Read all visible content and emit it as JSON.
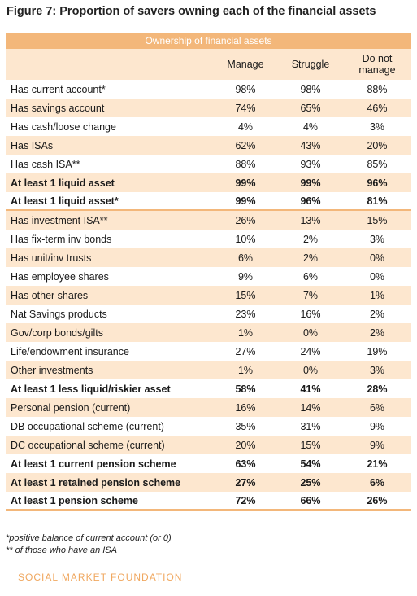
{
  "title": "Figure 7: Proportion of savers owning each of the financial assets",
  "table": {
    "banner": "Ownership of financial assets",
    "columns": [
      "Manage",
      "Struggle",
      "Do not manage"
    ],
    "rows": [
      {
        "label": "Has current account*",
        "manage": "98%",
        "struggle": "98%",
        "donot": "88%"
      },
      {
        "label": "Has savings account",
        "manage": "74%",
        "struggle": "65%",
        "donot": "46%"
      },
      {
        "label": "Has cash/loose change",
        "manage": "4%",
        "struggle": "4%",
        "donot": "3%"
      },
      {
        "label": "Has ISAs",
        "manage": "62%",
        "struggle": "43%",
        "donot": "20%"
      },
      {
        "label": "Has cash ISA**",
        "manage": "88%",
        "struggle": "93%",
        "donot": "85%"
      },
      {
        "label": "At least 1 liquid asset",
        "manage": "99%",
        "struggle": "99%",
        "donot": "96%"
      },
      {
        "label": "At least 1 liquid asset*",
        "manage": "99%",
        "struggle": "96%",
        "donot": "81%"
      },
      {
        "label": "Has investment ISA**",
        "manage": "26%",
        "struggle": "13%",
        "donot": "15%"
      },
      {
        "label": "Has fix-term inv bonds",
        "manage": "10%",
        "struggle": "2%",
        "donot": "3%"
      },
      {
        "label": "Has unit/inv trusts",
        "manage": "6%",
        "struggle": "2%",
        "donot": "0%"
      },
      {
        "label": "Has employee shares",
        "manage": "9%",
        "struggle": "6%",
        "donot": "0%"
      },
      {
        "label": "Has other shares",
        "manage": "15%",
        "struggle": "7%",
        "donot": "1%"
      },
      {
        "label": "Nat Savings products",
        "manage": "23%",
        "struggle": "16%",
        "donot": "2%"
      },
      {
        "label": "Gov/corp bonds/gilts",
        "manage": "1%",
        "struggle": "0%",
        "donot": "2%"
      },
      {
        "label": "Life/endowment insurance",
        "manage": "27%",
        "struggle": "24%",
        "donot": "19%"
      },
      {
        "label": "Other investments",
        "manage": "1%",
        "struggle": "0%",
        "donot": "3%"
      },
      {
        "label": "At least 1 less liquid/riskier asset",
        "manage": "58%",
        "struggle": "41%",
        "donot": "28%"
      },
      {
        "label": "Personal pension (current)",
        "manage": "16%",
        "struggle": "14%",
        "donot": "6%"
      },
      {
        "label": "DB occupational scheme (current)",
        "manage": "35%",
        "struggle": "31%",
        "donot": "9%"
      },
      {
        "label": "DC occupational scheme (current)",
        "manage": "20%",
        "struggle": "15%",
        "donot": "9%"
      },
      {
        "label": "At least 1 current pension scheme",
        "manage": "63%",
        "struggle": "54%",
        "donot": "21%"
      },
      {
        "label": "At least 1 retained pension scheme",
        "manage": "27%",
        "struggle": "25%",
        "donot": "6%"
      },
      {
        "label": "At least 1 pension scheme",
        "manage": "72%",
        "struggle": "66%",
        "donot": "26%"
      }
    ]
  },
  "notes": [
    "*positive balance of current account (or 0)",
    "** of those who have an ISA"
  ],
  "footer": "SOCIAL MARKET FOUNDATION"
}
